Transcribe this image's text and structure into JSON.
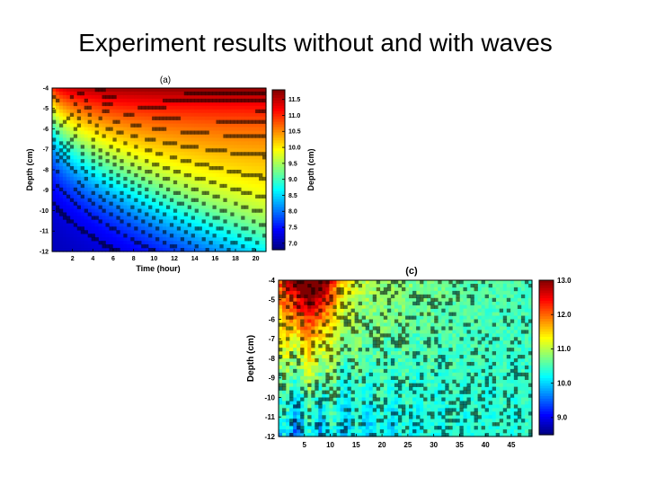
{
  "slide": {
    "title": "Experiment results without and with waves"
  },
  "chart_data": [
    {
      "type": "heatmap",
      "title": "(a)",
      "xlabel": "Time (hour)",
      "ylabel": "Depth (cm)",
      "colorbar_label": "Depth (cm)",
      "x_ticks": [
        "2",
        "4",
        "6",
        "8",
        "10",
        "12",
        "14",
        "16",
        "18",
        "20"
      ],
      "y_ticks": [
        "-4",
        "-5",
        "-6",
        "-7",
        "-8",
        "-9",
        "-10",
        "-11",
        "-12"
      ],
      "xlim": [
        0,
        21
      ],
      "ylim": [
        -12,
        -4
      ],
      "colorbar_ticks": [
        "11.5",
        "11.0",
        "10.5",
        "10.0",
        "9.5",
        "9.0",
        "8.5",
        "8.0",
        "7.5",
        "7.0"
      ],
      "colorbar_range": [
        6.8,
        11.8
      ],
      "colormap": "jet",
      "grid": false,
      "pattern": "smooth diffusion front: warm (~11.5) near surface depth -4 spreading downward over time; cold (~7) at depth -12 early"
    },
    {
      "type": "heatmap",
      "title": "(c)",
      "xlabel": "",
      "ylabel": "Depth (cm)",
      "x_ticks": [
        "5",
        "10",
        "15",
        "20",
        "25",
        "30",
        "35",
        "40",
        "45"
      ],
      "y_ticks": [
        "-4",
        "-5",
        "-6",
        "-7",
        "-8",
        "-9",
        "-10",
        "-11",
        "-12"
      ],
      "xlim": [
        0,
        49
      ],
      "ylim": [
        -12,
        -4
      ],
      "colorbar_ticks": [
        "13.0",
        "12.0",
        "11.0",
        "10.0",
        "9.0"
      ],
      "colorbar_range": [
        8.5,
        13.0
      ],
      "colormap": "jet",
      "grid": false,
      "pattern": "hot (~13) near surface around x 3-10, noisy wave-driven mixing; field relaxes to ~10.5 after x ~30"
    }
  ],
  "colors": {
    "background": "#ffffff",
    "text": "#000000"
  }
}
